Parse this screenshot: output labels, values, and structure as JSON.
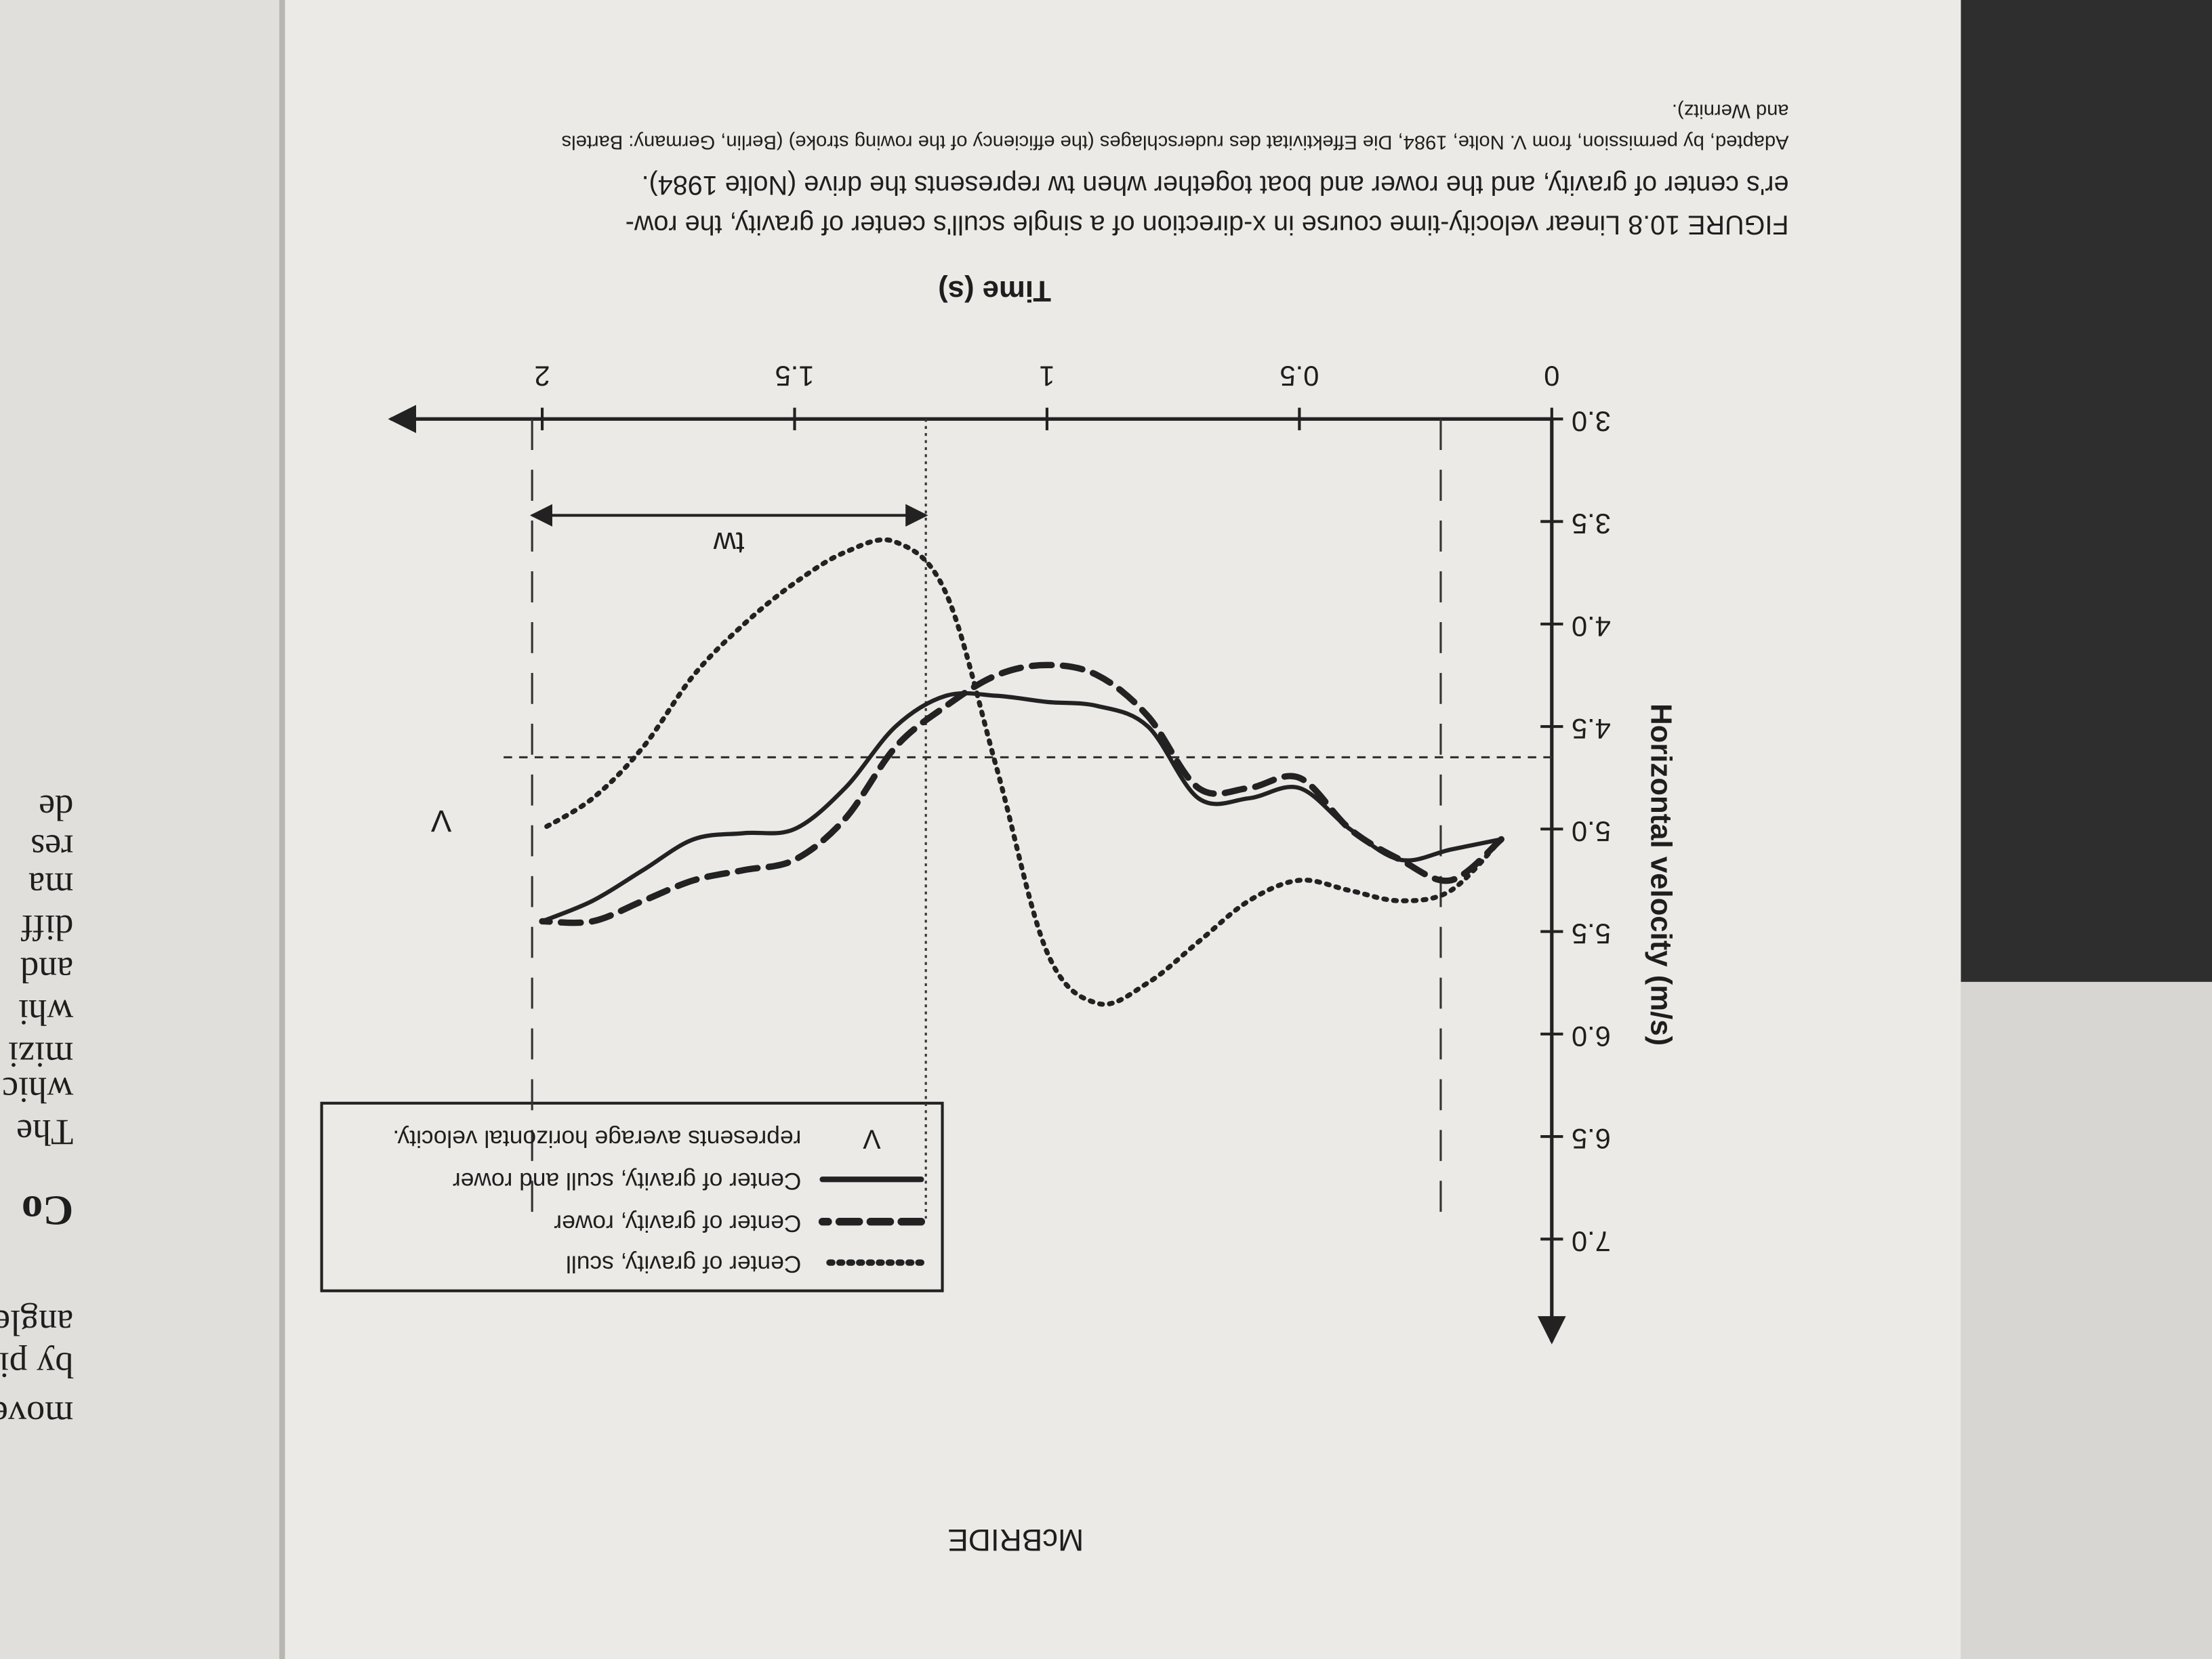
{
  "page": {
    "footer": "McBRIDE",
    "facing_page_fragments": [
      "movem",
      "by piv",
      "angle",
      "Co",
      "The",
      "whic",
      "mizi",
      "whi",
      "and",
      "diff",
      "ma",
      "res",
      "de"
    ]
  },
  "chart_data": {
    "type": "line",
    "x_label": "Time (s)",
    "y_label": "Horizontal velocity (m/s)",
    "caption_lines": [
      "FIGURE 10.8   Linear velocity-time course in x-direction of a single scull's center of gravity, the row-",
      "er's center of gravity, and the rower and boat together when tw represents the drive (Nolte 1984).",
      "Adapted, by permission, from V. Nolte, 1984, Die Effektivitat des ruderschlages (the efficiency of the rowing stroke) (Berlin, Germany: Bartels",
      "and Wernitz)."
    ],
    "x": [
      0.1,
      0.2,
      0.3,
      0.4,
      0.5,
      0.6,
      0.7,
      0.8,
      0.9,
      1.0,
      1.1,
      1.2,
      1.3,
      1.4,
      1.5,
      1.6,
      1.7,
      1.8,
      1.9,
      2.0
    ],
    "series": [
      {
        "name": "Center of gravity, scull",
        "color": "#222222",
        "dash": "2 5",
        "width": 3.5,
        "values": [
          5.05,
          5.3,
          5.35,
          5.3,
          5.25,
          5.35,
          5.55,
          5.75,
          5.85,
          5.6,
          4.7,
          3.85,
          3.6,
          3.65,
          3.8,
          4.0,
          4.25,
          4.6,
          4.85,
          5.0
        ]
      },
      {
        "name": "Center of gravity, rower",
        "color": "#222222",
        "dash": "14 8",
        "width": 4.5,
        "values": [
          5.05,
          5.25,
          5.15,
          5.0,
          4.75,
          4.8,
          4.8,
          4.45,
          4.25,
          4.2,
          4.25,
          4.4,
          4.6,
          4.95,
          5.15,
          5.2,
          5.25,
          5.35,
          5.45,
          5.45
        ]
      },
      {
        "name": "Center of gravity, scull and rower",
        "color": "#222222",
        "dash": "none",
        "width": 3,
        "values": [
          5.05,
          5.1,
          5.15,
          5.0,
          4.8,
          4.85,
          4.85,
          4.5,
          4.4,
          4.38,
          4.35,
          4.35,
          4.5,
          4.8,
          5.0,
          5.02,
          5.05,
          5.2,
          5.35,
          5.45
        ]
      }
    ],
    "xlim": [
      0,
      2.3
    ],
    "xticks": [
      0,
      0.5,
      1,
      1.5,
      2
    ],
    "ylim": [
      3,
      7.5
    ],
    "yticks": [
      {
        "value": 3,
        "label": "3.0"
      },
      3.5,
      {
        "value": 4,
        "label": "4.0"
      },
      4.5,
      {
        "value": 5,
        "label": "5.0"
      },
      5.5,
      {
        "value": 6,
        "label": "6.0"
      },
      6.5,
      {
        "value": 7,
        "label": "7.0"
      }
    ],
    "average_velocity": 4.65,
    "average_label": "V",
    "average_note": "represents average horizontal velocity.",
    "drive_label": "tw",
    "drive_span": [
      1.24,
      2.02
    ],
    "phase_lines": [
      0.22,
      1.24,
      2.02
    ]
  }
}
